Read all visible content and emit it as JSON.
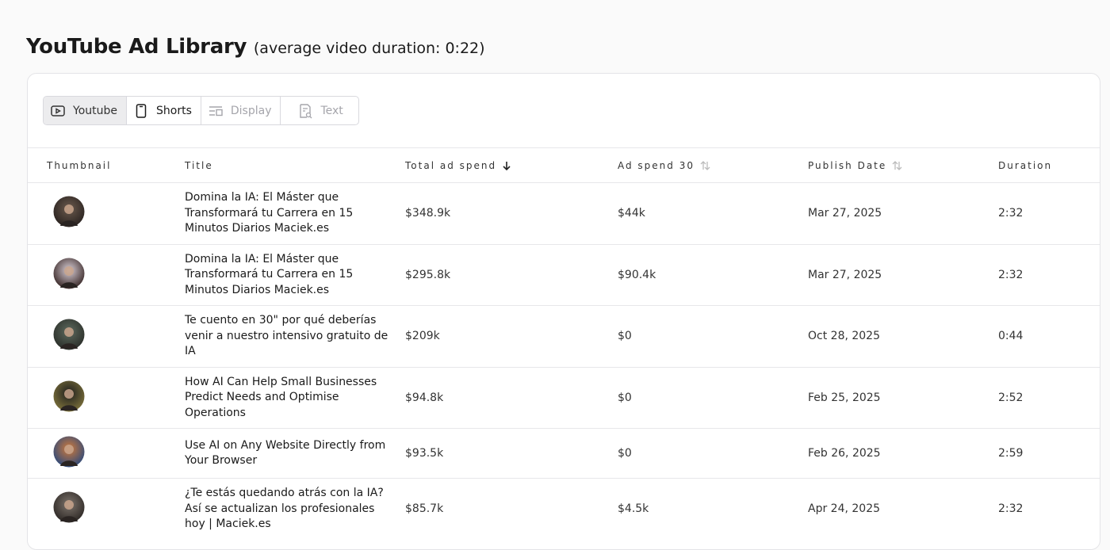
{
  "header": {
    "title": "YouTube Ad Library",
    "subtitle": "(average video duration: 0:22)"
  },
  "tabs": [
    "Youtube",
    "Shorts",
    "Display",
    "Text"
  ],
  "table": {
    "columns": [
      "Thumbnail",
      "Title",
      "Total ad spend",
      "Ad spend 30",
      "Publish Date",
      "Duration"
    ],
    "rows": [
      [
        "Domina la IA: El Máster que Transformará tu Carrera en 15 Minutos Diarios Maciek.es",
        "$348.9k",
        "$44k",
        "Mar 27, 2025",
        "2:32"
      ],
      [
        "Domina la IA: El Máster que Transformará tu Carrera en 15 Minutos Diarios Maciek.es",
        "$295.8k",
        "$90.4k",
        "Mar 27, 2025",
        "2:32"
      ],
      [
        "Te cuento en 30\" por qué deberías venir a nuestro intensivo gratuito de IA",
        "$209k",
        "$0",
        "Oct 28, 2025",
        "0:44"
      ],
      [
        "How AI Can Help Small Businesses Predict Needs and Optimise Operations",
        "$94.8k",
        "$0",
        "Feb 25, 2025",
        "2:52"
      ],
      [
        "Use AI on Any Website Directly from Your Browser",
        "$93.5k",
        "$0",
        "Feb 26, 2025",
        "2:59"
      ],
      [
        "¿Te estás quedando atrás con la IA? Así se actualizan los profesionales hoy | Maciek.es",
        "$85.7k",
        "$4.5k",
        "Apr 24, 2025",
        "2:32"
      ]
    ]
  }
}
